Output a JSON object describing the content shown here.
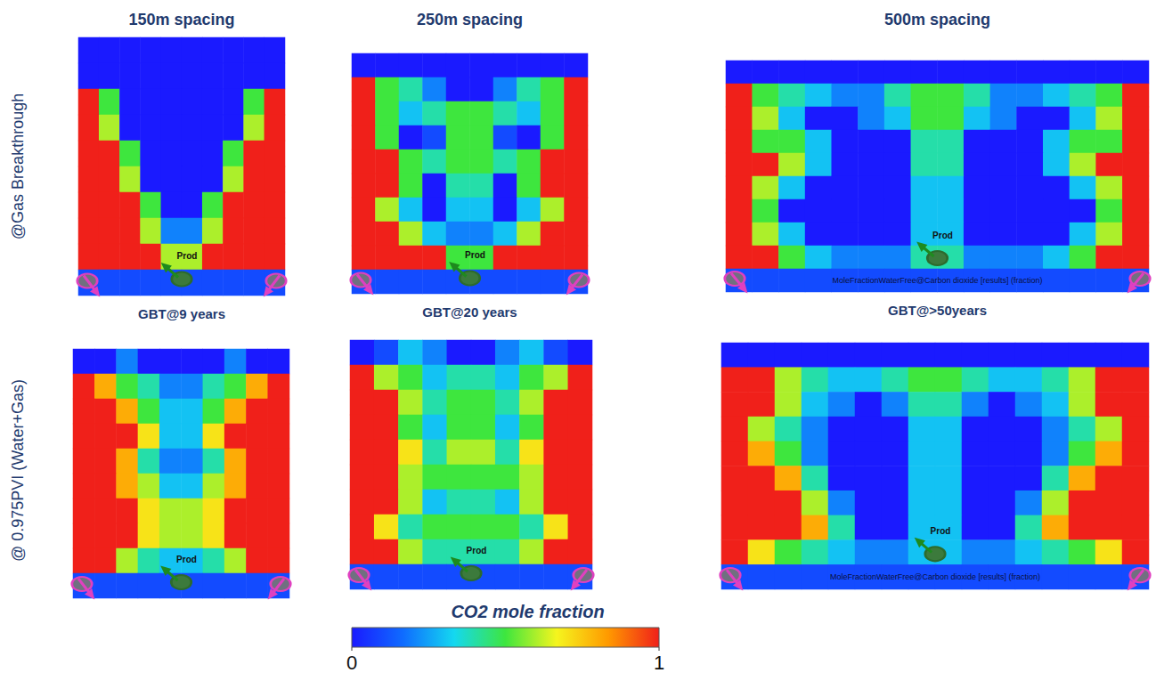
{
  "columns": [
    "150m spacing",
    "250m spacing",
    "500m spacing"
  ],
  "rows": [
    "@Gas Breakthrough",
    "@ 0.975PVI (Water+Gas)"
  ],
  "colorbar": {
    "label": "CO2 mole fraction",
    "range": [
      0,
      1
    ],
    "ticks": [
      0,
      1
    ]
  },
  "chart_data": [
    {
      "type": "heatmap",
      "tick_labels": false,
      "subtitle": "GBT@9 years",
      "well_label": "Prod",
      "cells": [
        [
          0,
          0,
          0,
          0,
          0,
          0,
          0,
          0,
          0,
          0
        ],
        [
          0,
          0,
          0,
          0,
          0,
          0,
          0,
          0,
          0,
          0
        ],
        [
          1,
          0.5,
          0,
          0,
          0,
          0,
          0,
          0,
          0.5,
          1
        ],
        [
          1,
          0.6,
          0,
          0,
          0,
          0,
          0,
          0,
          0.6,
          1
        ],
        [
          1,
          1,
          0.5,
          0,
          0,
          0,
          0,
          0.5,
          1,
          1
        ],
        [
          1,
          1,
          0.6,
          0,
          0,
          0,
          0,
          0.6,
          1,
          1
        ],
        [
          1,
          1,
          1,
          0.5,
          0,
          0,
          0.5,
          1,
          1,
          1
        ],
        [
          1,
          1,
          1,
          0.6,
          0.2,
          0.2,
          0.6,
          1,
          1,
          1
        ],
        [
          1,
          1,
          1,
          1,
          0.6,
          0.6,
          1,
          1,
          1,
          1
        ],
        [
          0.1,
          0.1,
          0.1,
          0.1,
          0.1,
          0.1,
          0.1,
          0.1,
          0.1,
          0.1
        ]
      ]
    },
    {
      "type": "heatmap",
      "tick_labels": false,
      "subtitle": "GBT@20 years",
      "well_label": "Prod",
      "cells": [
        [
          0,
          0,
          0,
          0,
          0,
          0,
          0,
          0,
          0,
          0
        ],
        [
          1,
          0.5,
          0.4,
          0.2,
          0,
          0,
          0.2,
          0.4,
          0.5,
          1
        ],
        [
          1,
          0.5,
          0.3,
          0.4,
          0.5,
          0.5,
          0.4,
          0.3,
          0.5,
          1
        ],
        [
          1,
          0.5,
          0,
          0.1,
          0.5,
          0.5,
          0.1,
          0,
          0.5,
          1
        ],
        [
          1,
          1,
          0.5,
          0.4,
          0.5,
          0.5,
          0.4,
          0.5,
          1,
          1
        ],
        [
          1,
          1,
          0.5,
          0,
          0.4,
          0.4,
          0,
          0.5,
          1,
          1
        ],
        [
          1,
          0.6,
          0.3,
          0,
          0.3,
          0.3,
          0,
          0.3,
          0.6,
          1
        ],
        [
          1,
          1,
          0.6,
          0.3,
          0.2,
          0.2,
          0.3,
          0.6,
          1,
          1
        ],
        [
          1,
          1,
          1,
          1,
          0.5,
          0.5,
          1,
          1,
          1,
          1
        ],
        [
          0.1,
          0.1,
          0.1,
          0.1,
          0.1,
          0.1,
          0.1,
          0.1,
          0.1,
          0.1
        ]
      ]
    },
    {
      "type": "heatmap",
      "tick_labels": false,
      "subtitle": "GBT@>50years",
      "well_label": "Prod",
      "field_label": "MoleFractionWaterFree@Carbon dioxide [results] (fraction)",
      "cells": [
        [
          0,
          0,
          0,
          0,
          0,
          0,
          0,
          0,
          0,
          0,
          0,
          0,
          0,
          0,
          0,
          0
        ],
        [
          1,
          0.5,
          0.4,
          0.3,
          0.2,
          0.2,
          0.4,
          0.5,
          0.5,
          0.4,
          0.2,
          0.2,
          0.3,
          0.4,
          0.5,
          1
        ],
        [
          1,
          0.6,
          0.3,
          0,
          0,
          0.2,
          0.3,
          0.5,
          0.5,
          0.3,
          0.2,
          0,
          0,
          0.3,
          0.6,
          1
        ],
        [
          1,
          0.5,
          0.5,
          0.3,
          0,
          0,
          0,
          0.4,
          0.4,
          0,
          0,
          0,
          0.3,
          0.5,
          0.5,
          1
        ],
        [
          1,
          1,
          0.6,
          0.3,
          0,
          0,
          0,
          0.4,
          0.4,
          0,
          0,
          0,
          0.3,
          0.6,
          1,
          1
        ],
        [
          1,
          0.6,
          0.3,
          0,
          0,
          0,
          0,
          0.3,
          0.3,
          0,
          0,
          0,
          0,
          0.3,
          0.6,
          1
        ],
        [
          1,
          0.5,
          0,
          0,
          0,
          0,
          0,
          0.3,
          0.3,
          0,
          0,
          0,
          0,
          0,
          0.5,
          1
        ],
        [
          1,
          0.6,
          0.3,
          0,
          0,
          0,
          0,
          0.3,
          0.3,
          0,
          0,
          0,
          0,
          0.3,
          0.6,
          1
        ],
        [
          1,
          1,
          0.5,
          0.3,
          0.2,
          0.2,
          0.2,
          0.4,
          0.4,
          0.2,
          0.2,
          0.2,
          0.3,
          0.5,
          1,
          1
        ],
        [
          0.1,
          0.1,
          0.1,
          0.1,
          0.1,
          0.1,
          0.1,
          0.1,
          0.1,
          0.1,
          0.1,
          0.1,
          0.1,
          0.1,
          0.1,
          0.1
        ]
      ]
    },
    {
      "type": "heatmap",
      "tick_labels": false,
      "well_label": "Prod",
      "cells": [
        [
          0,
          0,
          0.2,
          0,
          0,
          0,
          0,
          0.2,
          0,
          0
        ],
        [
          1,
          0.8,
          0.5,
          0.4,
          0.2,
          0.2,
          0.4,
          0.5,
          0.8,
          1
        ],
        [
          1,
          1,
          0.8,
          0.5,
          0.3,
          0.3,
          0.5,
          0.8,
          1,
          1
        ],
        [
          1,
          1,
          1,
          0.7,
          0.3,
          0.3,
          0.7,
          1,
          1,
          1
        ],
        [
          1,
          1,
          0.8,
          0.4,
          0.2,
          0.2,
          0.4,
          0.8,
          1,
          1
        ],
        [
          1,
          1,
          0.8,
          0.6,
          0.3,
          0.3,
          0.6,
          0.8,
          1,
          1
        ],
        [
          1,
          1,
          1,
          0.7,
          0.6,
          0.6,
          0.7,
          1,
          1,
          1
        ],
        [
          1,
          1,
          1,
          0.7,
          0.6,
          0.6,
          0.7,
          1,
          1,
          1
        ],
        [
          1,
          1,
          0.6,
          0.4,
          0.3,
          0.3,
          0.4,
          0.6,
          1,
          1
        ],
        [
          0.1,
          0.1,
          0.1,
          0.1,
          0.1,
          0.1,
          0.1,
          0.1,
          0.1,
          0.1
        ]
      ]
    },
    {
      "type": "heatmap",
      "tick_labels": false,
      "well_label": "Prod",
      "cells": [
        [
          0,
          0.1,
          0.3,
          0.2,
          0,
          0,
          0.2,
          0.3,
          0.1,
          0
        ],
        [
          1,
          0.6,
          0.5,
          0.3,
          0.4,
          0.4,
          0.3,
          0.5,
          0.6,
          1
        ],
        [
          1,
          1,
          0.6,
          0.4,
          0.5,
          0.5,
          0.4,
          0.6,
          1,
          1
        ],
        [
          1,
          1,
          0.5,
          0.3,
          0.5,
          0.5,
          0.3,
          0.5,
          1,
          1
        ],
        [
          1,
          1,
          0.7,
          0.4,
          0.6,
          0.6,
          0.4,
          0.7,
          1,
          1
        ],
        [
          1,
          1,
          0.6,
          0.5,
          0.5,
          0.5,
          0.5,
          0.6,
          1,
          1
        ],
        [
          1,
          1,
          0.6,
          0.3,
          0.4,
          0.4,
          0.3,
          0.6,
          1,
          1
        ],
        [
          1,
          0.7,
          0.4,
          0.5,
          0.5,
          0.5,
          0.5,
          0.4,
          0.7,
          1
        ],
        [
          1,
          1,
          0.6,
          0.4,
          0.4,
          0.4,
          0.4,
          0.6,
          1,
          1
        ],
        [
          0.1,
          0.1,
          0.1,
          0.1,
          0.1,
          0.1,
          0.1,
          0.1,
          0.1,
          0.1
        ]
      ]
    },
    {
      "type": "heatmap",
      "tick_labels": false,
      "well_label": "Prod",
      "field_label": "MoleFractionWaterFree@Carbon dioxide [results] (fraction)",
      "cells": [
        [
          0,
          0,
          0,
          0,
          0,
          0,
          0,
          0,
          0,
          0,
          0,
          0,
          0,
          0,
          0,
          0
        ],
        [
          1,
          1,
          0.6,
          0.4,
          0.3,
          0.3,
          0.4,
          0.5,
          0.5,
          0.4,
          0.3,
          0.3,
          0.4,
          0.6,
          1,
          1
        ],
        [
          1,
          1,
          0.6,
          0.3,
          0.2,
          0,
          0.2,
          0.4,
          0.4,
          0.2,
          0,
          0.2,
          0.3,
          0.6,
          1,
          1
        ],
        [
          1,
          0.6,
          0.4,
          0.2,
          0,
          0,
          0,
          0.3,
          0.3,
          0,
          0,
          0,
          0.2,
          0.4,
          0.6,
          1
        ],
        [
          1,
          0.8,
          0.5,
          0.2,
          0,
          0,
          0,
          0.3,
          0.3,
          0,
          0,
          0,
          0.2,
          0.5,
          0.8,
          1
        ],
        [
          1,
          1,
          0.8,
          0.4,
          0,
          0,
          0,
          0.3,
          0.3,
          0,
          0,
          0,
          0.4,
          0.8,
          1,
          1
        ],
        [
          1,
          1,
          1,
          0.6,
          0.2,
          0,
          0,
          0.3,
          0.3,
          0,
          0,
          0.2,
          0.6,
          1,
          1,
          1
        ],
        [
          1,
          1,
          1,
          0.8,
          0.4,
          0,
          0,
          0.3,
          0.3,
          0,
          0,
          0.4,
          0.8,
          1,
          1,
          1
        ],
        [
          1,
          0.7,
          0.5,
          0.4,
          0.3,
          0.2,
          0.2,
          0.3,
          0.3,
          0.2,
          0.2,
          0.3,
          0.4,
          0.5,
          0.7,
          1
        ],
        [
          0.1,
          0.1,
          0.1,
          0.1,
          0.1,
          0.1,
          0.1,
          0.1,
          0.1,
          0.1,
          0.1,
          0.1,
          0.1,
          0.1,
          0.1,
          0.1
        ]
      ]
    }
  ]
}
